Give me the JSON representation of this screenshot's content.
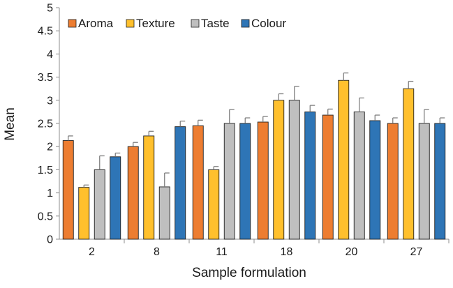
{
  "chart_data": {
    "type": "bar",
    "title": "",
    "xlabel": "Sample formulation",
    "ylabel": "Mean",
    "ylim": [
      0,
      5
    ],
    "yticks": [
      "0",
      "0.5",
      "1",
      "1.5",
      "2",
      "2.5",
      "3",
      "3.5",
      "4",
      "4.5",
      "5"
    ],
    "ytick_values": [
      0,
      0.5,
      1,
      1.5,
      2,
      2.5,
      3,
      3.5,
      4,
      4.5,
      5
    ],
    "categories": [
      "2",
      "8",
      "11",
      "18",
      "20",
      "27"
    ],
    "grid": false,
    "legend_position": "top-left",
    "series": [
      {
        "name": "Aroma",
        "color": "#ed7d31",
        "values": [
          2.13,
          2.0,
          2.45,
          2.53,
          2.68,
          2.5
        ],
        "errors": [
          0.1,
          0.09,
          0.12,
          0.12,
          0.13,
          0.12
        ]
      },
      {
        "name": "Texture",
        "color": "#ffc02d",
        "values": [
          1.12,
          2.23,
          1.5,
          3.0,
          3.43,
          3.25
        ],
        "errors": [
          0.05,
          0.1,
          0.07,
          0.14,
          0.16,
          0.16
        ]
      },
      {
        "name": "Taste",
        "color": "#bfbfbf",
        "values": [
          1.5,
          1.13,
          2.5,
          3.0,
          2.75,
          2.5
        ],
        "errors": [
          0.3,
          0.3,
          0.3,
          0.3,
          0.3,
          0.3
        ]
      },
      {
        "name": "Colour",
        "color": "#2e75b6",
        "values": [
          1.78,
          2.43,
          2.5,
          2.75,
          2.56,
          2.5
        ],
        "errors": [
          0.08,
          0.12,
          0.12,
          0.14,
          0.12,
          0.12
        ]
      }
    ]
  }
}
